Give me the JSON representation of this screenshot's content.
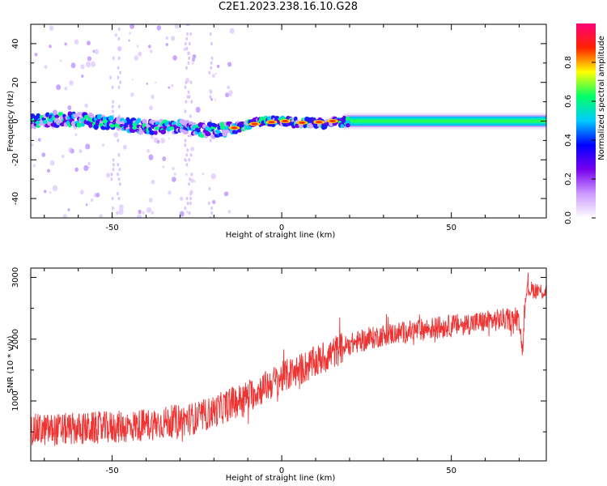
{
  "page": {
    "title": "C2E1.2023.238.16.10.G28"
  },
  "colors": {
    "snr_line": "#ee3333",
    "colormap": [
      "#ffffff",
      "#cc99ff",
      "#7700ee",
      "#0000ff",
      "#00ccff",
      "#00ff66",
      "#ffff00",
      "#ff2200",
      "#ff0077"
    ]
  },
  "chart_data": [
    {
      "type": "heatmap",
      "title": "",
      "xlabel": "Height of straight line (km)",
      "ylabel": "Frequency (Hz)",
      "xlim": [
        -74,
        78
      ],
      "ylim": [
        -50,
        50
      ],
      "xticks": [
        -50,
        0,
        50
      ],
      "yticks": [
        -40,
        -20,
        0,
        20,
        40
      ],
      "colorbar": {
        "label": "Normalized spectral amplitude",
        "range": [
          0.0,
          1.0
        ],
        "ticks": [
          "0.0",
          "0.2",
          "0.4",
          "0.6",
          "0.8"
        ]
      },
      "ridge": {
        "description_points_km": [
          -74,
          -60,
          -50,
          -40,
          -30,
          -20,
          -15,
          -10,
          -5,
          0,
          5,
          10,
          15,
          20,
          30,
          50,
          78
        ],
        "center_hz": [
          0,
          1,
          -1,
          -3,
          -3,
          -5,
          -4,
          -2,
          0,
          0,
          -1,
          -1,
          -1,
          0,
          0,
          0,
          0
        ]
      }
    },
    {
      "type": "line",
      "title": "",
      "xlabel": "Height of straight line (km)",
      "ylabel": "SNR (10 * v/v)",
      "xlim": [
        -74,
        78
      ],
      "ylim": [
        30,
        3150
      ],
      "xticks": [
        -50,
        0,
        50
      ],
      "yticks": [
        1000,
        2000,
        3000
      ],
      "trend_x": [
        -74,
        -60,
        -45,
        -35,
        -25,
        -20,
        -10,
        0,
        10,
        20,
        30,
        50,
        65,
        70,
        71,
        72,
        78
      ],
      "trend_y": [
        500,
        520,
        560,
        620,
        700,
        800,
        1050,
        1350,
        1600,
        1900,
        2050,
        2200,
        2300,
        2300,
        1800,
        2800,
        2750
      ]
    }
  ]
}
